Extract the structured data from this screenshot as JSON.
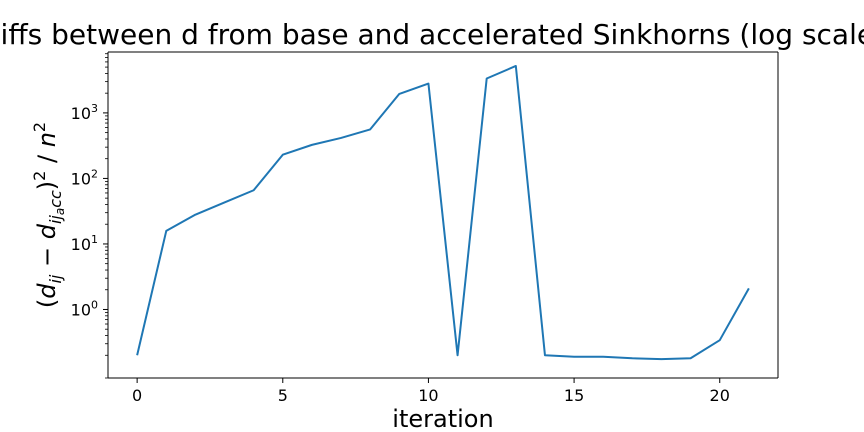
{
  "chart_data": {
    "type": "line",
    "title": "Diffs between d from base and accelerated Sinkhorns (log scale)",
    "xlabel": "iteration",
    "ylabel": {
      "open": "(",
      "d": "d",
      "sub_ij": "ij",
      "minus": " − ",
      "d2": "d",
      "sub_ij2": "ij",
      "sub_a": "a",
      "sub_cc": "cc",
      "close": ")",
      "sq": "2",
      "slash": " / ",
      "n": "n",
      "n_sq": "2"
    },
    "x_ticks": [
      0,
      5,
      10,
      15,
      20
    ],
    "y_ticks": [
      {
        "value": 1,
        "base": "10",
        "exp": "0"
      },
      {
        "value": 10,
        "base": "10",
        "exp": "1"
      },
      {
        "value": 100,
        "base": "10",
        "exp": "2"
      },
      {
        "value": 1000,
        "base": "10",
        "exp": "3"
      }
    ],
    "y_scale": "log",
    "xlim": [
      -1,
      22
    ],
    "ylim": [
      0.09,
      8500
    ],
    "grid": false,
    "color": "#1f77b4",
    "x": [
      0,
      1,
      2,
      3,
      4,
      5,
      6,
      7,
      8,
      9,
      10,
      11,
      12,
      13,
      14,
      15,
      16,
      17,
      18,
      19,
      20,
      21
    ],
    "y": [
      0.2,
      15.8,
      28,
      43,
      66,
      230,
      325,
      415,
      560,
      1950,
      2800,
      0.2,
      3350,
      5200,
      0.2,
      0.19,
      0.19,
      0.18,
      0.175,
      0.18,
      0.34,
      2.1
    ]
  }
}
